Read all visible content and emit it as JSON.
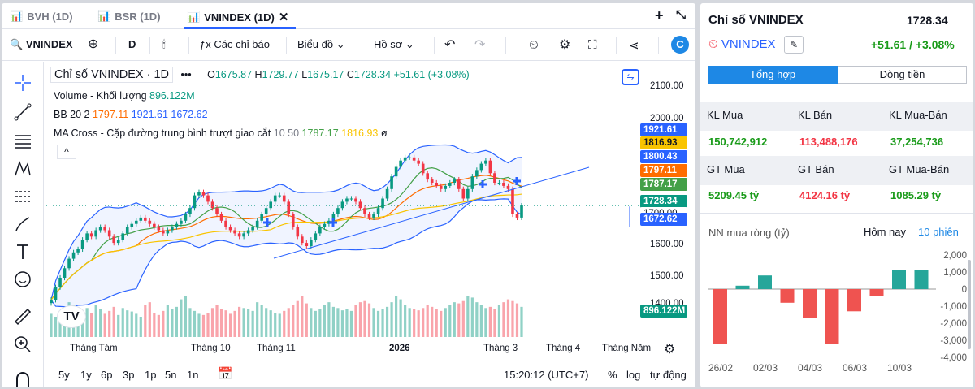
{
  "tabs": [
    {
      "label": "BVH (1D)"
    },
    {
      "label": "BSR (1D)"
    },
    {
      "label": "VNINDEX (1D)"
    }
  ],
  "toolbar": {
    "symbol": "VNINDEX",
    "interval": "D",
    "indicators": "Các chỉ báo",
    "chart_type": "Biểu đồ",
    "profile": "Hồ sơ"
  },
  "legend": {
    "title": "Chỉ số VNINDEX · 1D",
    "o_label": "O",
    "o": "1675.87",
    "h_label": "H",
    "h": "1729.77",
    "l_label": "L",
    "l": "1675.17",
    "c_label": "C",
    "c": "1728.34",
    "change": "+51.61 (+3.08%)",
    "volume_label": "Volume - Khối lượng",
    "volume": "896.122M",
    "bb_label": "BB 20 2",
    "bb_mid": "1797.11",
    "bb_up": "1921.61",
    "bb_low": "1672.62",
    "ma_label": "MA Cross - Cặp đường trung bình trượt giao cắt",
    "ma_params": "10 50",
    "ma1": "1787.17",
    "ma2": "1816.93",
    "ma_sym": "ø"
  },
  "price_labels": [
    "1921.61",
    "1816.93",
    "1800.43",
    "1797.11",
    "1787.17",
    "1728.34",
    "1700.00",
    "1672.62",
    "896.122M"
  ],
  "chart_data": {
    "type": "candlestick",
    "y_ticks": [
      "2100.00",
      "2000.00",
      "1600.00",
      "1500.00",
      "1400.00"
    ],
    "x_ticks": [
      "Tháng Tám",
      "Tháng 10",
      "Tháng 11",
      "2026",
      "Tháng 3",
      "Tháng 4",
      "Tháng Năm"
    ],
    "closes": [
      1430,
      1470,
      1500,
      1530,
      1560,
      1580,
      1590,
      1620,
      1640,
      1630,
      1650,
      1660,
      1650,
      1630,
      1610,
      1620,
      1640,
      1660,
      1670,
      1680,
      1690,
      1680,
      1670,
      1660,
      1650,
      1640,
      1650,
      1660,
      1670,
      1680,
      1700,
      1720,
      1760,
      1770,
      1760,
      1740,
      1720,
      1700,
      1680,
      1660,
      1650,
      1640,
      1630,
      1640,
      1650,
      1660,
      1680,
      1700,
      1720,
      1740,
      1760,
      1760,
      1740,
      1700,
      1660,
      1630,
      1610,
      1600,
      1620,
      1640,
      1660,
      1670,
      1680,
      1700,
      1720,
      1740,
      1750,
      1750,
      1740,
      1720,
      1700,
      1690,
      1700,
      1720,
      1750,
      1780,
      1820,
      1850,
      1870,
      1880,
      1880,
      1870,
      1860,
      1830,
      1810,
      1800,
      1790,
      1780,
      1790,
      1800,
      1810,
      1780,
      1750,
      1780,
      1820,
      1840,
      1860,
      1870,
      1830,
      1800,
      1800,
      1790,
      1780,
      1700,
      1690,
      1728
    ],
    "volumes": [
      40,
      35,
      45,
      50,
      60,
      55,
      40,
      45,
      50,
      42,
      55,
      48,
      40,
      45,
      52,
      38,
      50,
      46,
      44,
      40,
      35,
      55,
      60,
      42,
      38,
      45,
      55,
      48,
      52,
      65,
      70,
      50,
      45,
      40,
      38,
      42,
      50,
      55,
      48,
      46,
      40,
      45,
      52,
      50,
      48,
      45,
      60,
      55,
      50,
      46,
      42,
      40,
      45,
      50,
      55,
      62,
      70,
      58,
      50,
      45,
      48,
      55,
      60,
      52,
      50,
      46,
      48,
      45,
      55,
      60,
      62,
      58,
      50,
      45,
      48,
      52,
      60,
      70,
      65,
      55,
      50,
      48,
      46,
      50,
      55,
      52,
      48,
      45,
      50,
      55,
      60,
      58,
      62,
      70,
      68,
      60,
      55,
      50,
      52,
      48,
      55,
      60,
      65,
      62,
      58,
      52
    ]
  },
  "time_ranges": [
    "5y",
    "1y",
    "6p",
    "3p",
    "1p",
    "5n",
    "1n"
  ],
  "clock": "15:20:12 (UTC+7)",
  "bottom_right": {
    "pct": "%",
    "log": "log",
    "auto": "tự động"
  },
  "side": {
    "title": "Chỉ số VNINDEX",
    "price": "1728.34",
    "symbol": "VNINDEX",
    "change": "+51.61 / +3.08%",
    "tab1": "Tổng hợp",
    "tab2": "Dòng tiền",
    "h1": "KL Mua",
    "h2": "KL Bán",
    "h3": "KL Mua-Bán",
    "v1": "150,742,912",
    "v2": "113,488,176",
    "v3": "37,254,736",
    "h4": "GT Mua",
    "h5": "GT Bán",
    "h6": "GT Mua-Bán",
    "v4": "5209.45 tỷ",
    "v5": "4124.16 tỷ",
    "v6": "1085.29 tỷ",
    "nn_title": "NN mua ròng (tỷ)",
    "nn_today": "Hôm nay",
    "nn_10": "10 phiên"
  },
  "nn_chart": {
    "type": "bar",
    "values": [
      -3200,
      200,
      800,
      -800,
      -1700,
      -3200,
      -1300,
      -400,
      1100,
      1100
    ],
    "ylim": [
      -4000,
      2000
    ],
    "y_ticks": [
      "2,000",
      "1,000",
      "0",
      "-1,000",
      "-2,000",
      "-3,000",
      "-4,000"
    ],
    "x_ticks": [
      "26/02",
      "02/03",
      "04/03",
      "06/03",
      "10/03"
    ]
  },
  "colors": {
    "up": "#089981",
    "down": "#f23645",
    "accent": "#2962ff"
  }
}
